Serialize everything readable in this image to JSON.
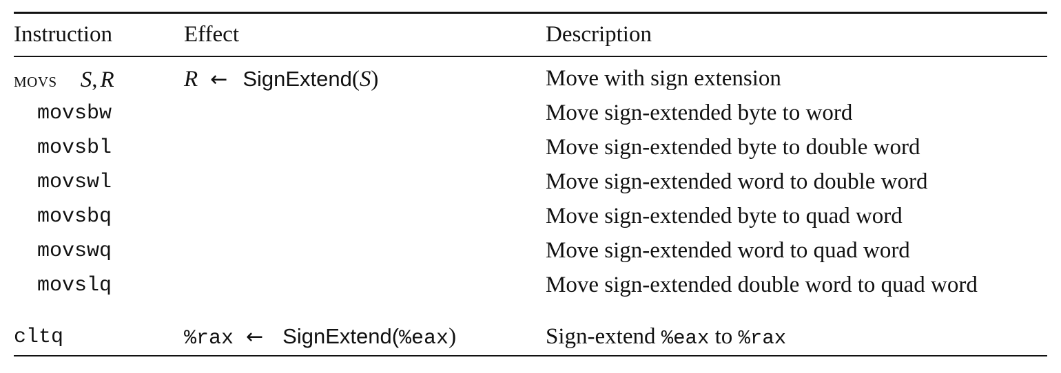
{
  "headers": {
    "instruction": "Instruction",
    "effect": "Effect",
    "description": "Description"
  },
  "movs_row": {
    "mnemonic": "movs",
    "operand_s": "S",
    "operand_comma": ",",
    "operand_r": "R",
    "effect_dest": "R",
    "arrow": "←",
    "effect_fn": "SignExtend",
    "effect_open": "(",
    "effect_arg": "S",
    "effect_close": ")",
    "description": "Move with sign extension"
  },
  "rows": [
    {
      "instruction": "movsbw",
      "description": "Move sign-extended byte to word"
    },
    {
      "instruction": "movsbl",
      "description": "Move sign-extended byte to double word"
    },
    {
      "instruction": "movswl",
      "description": "Move sign-extended word to double word"
    },
    {
      "instruction": "movsbq",
      "description": "Move sign-extended byte to quad word"
    },
    {
      "instruction": "movswq",
      "description": "Move sign-extended word to quad word"
    },
    {
      "instruction": "movslq",
      "description": "Move sign-extended double word to quad word"
    }
  ],
  "cltq_row": {
    "instruction": "cltq",
    "effect_dest": "%rax",
    "arrow": "←",
    "effect_fn": "SignExtend(",
    "effect_arg": "%eax",
    "effect_close": ")",
    "desc_prefix": "Sign-extend ",
    "desc_reg1": "%eax",
    "desc_mid": " to ",
    "desc_reg2": "%rax"
  }
}
